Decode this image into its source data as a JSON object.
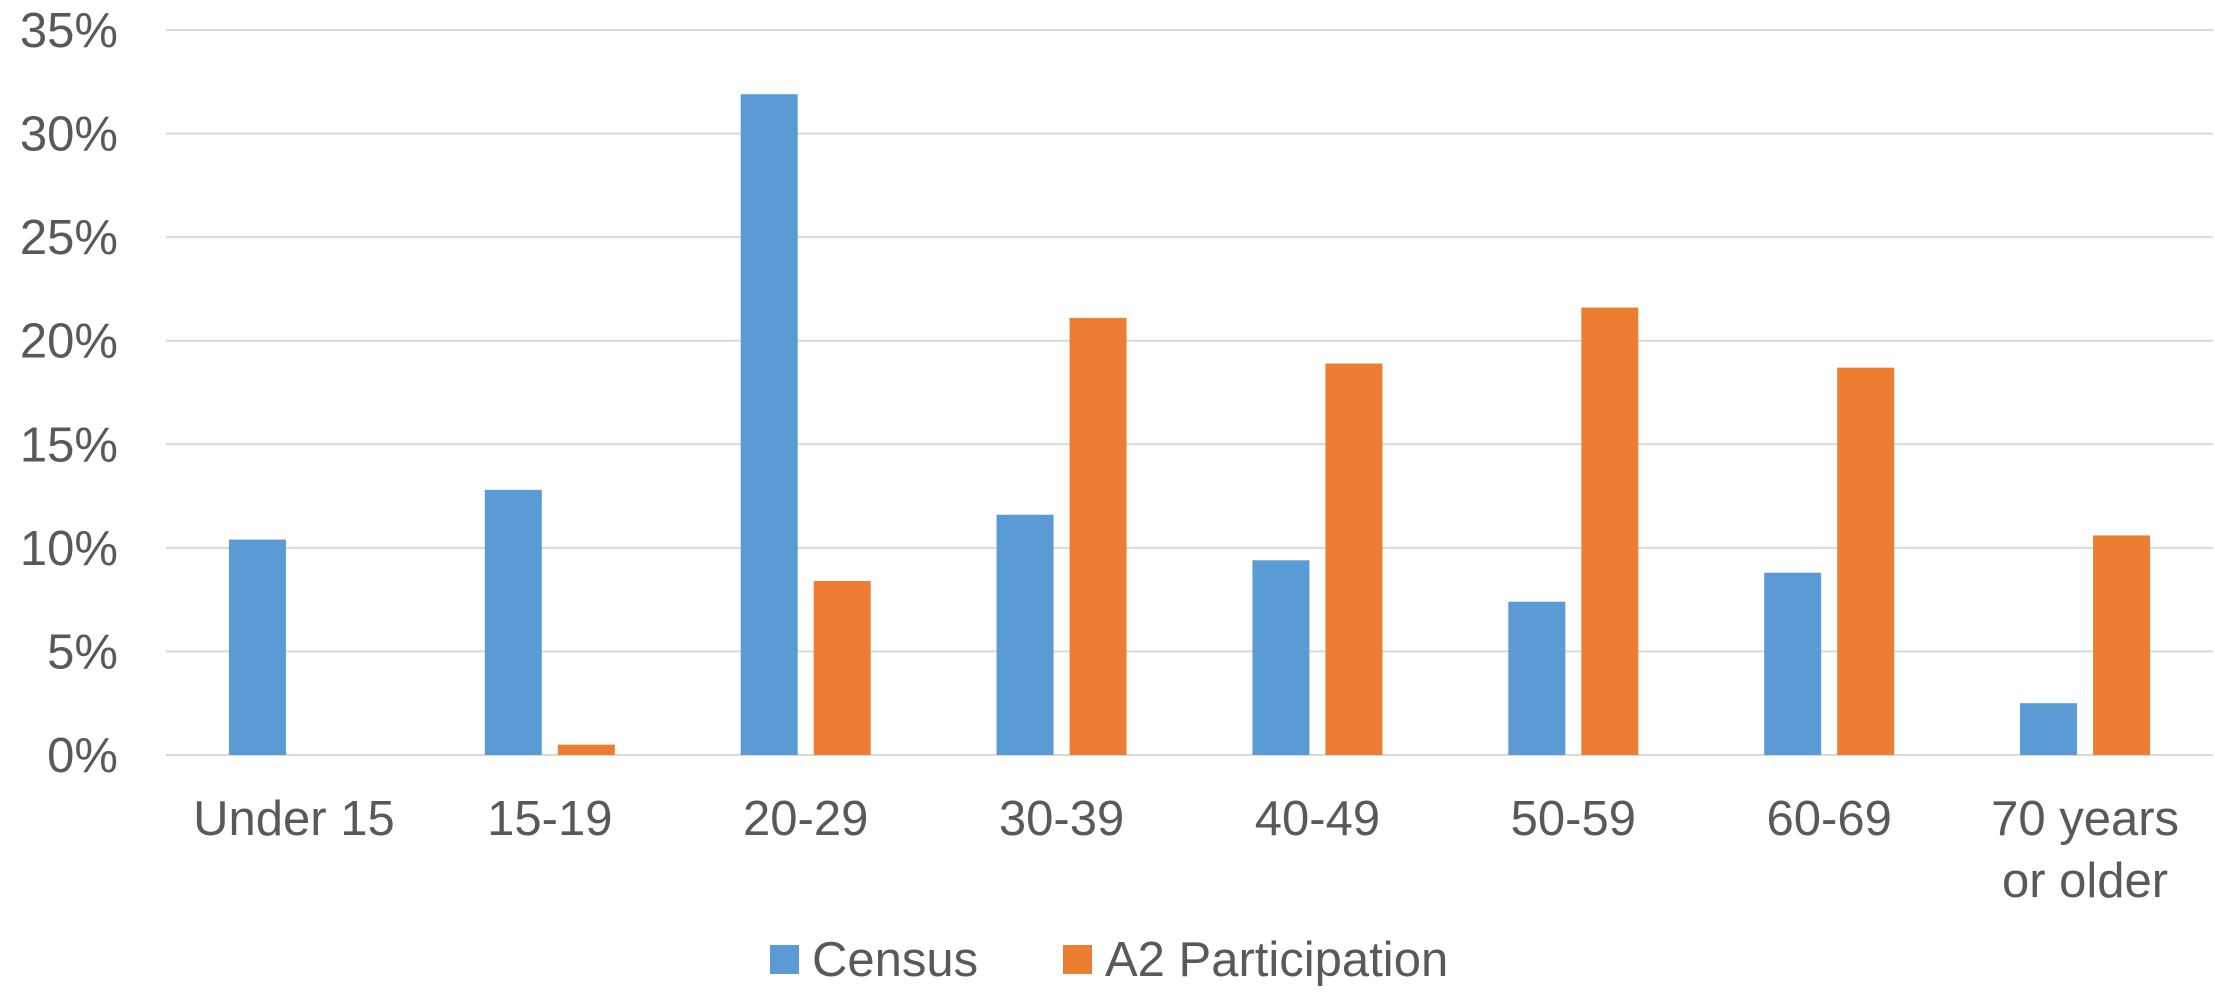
{
  "chart_data": {
    "type": "bar",
    "title": "",
    "xlabel": "",
    "ylabel": "",
    "categories": [
      [
        "Under 15"
      ],
      [
        "15-19"
      ],
      [
        "20-29"
      ],
      [
        "30-39"
      ],
      [
        "40-49"
      ],
      [
        "50-59"
      ],
      [
        "60-69"
      ],
      [
        "70 years",
        "or older"
      ]
    ],
    "series": [
      {
        "name": "Census",
        "color": "#5b9bd5",
        "values": [
          10.4,
          12.8,
          31.9,
          11.6,
          9.4,
          7.4,
          8.8,
          2.5
        ]
      },
      {
        "name": "A2 Participation",
        "color": "#ed7d31",
        "values": [
          0,
          0.5,
          8.4,
          21.1,
          18.9,
          21.6,
          18.7,
          10.6
        ]
      }
    ],
    "ylim": [
      0,
      35
    ],
    "yticks": [
      0,
      5,
      10,
      15,
      20,
      25,
      30,
      35
    ],
    "ytick_format": "{v}%",
    "grid": true,
    "legend_position": "bottom"
  }
}
